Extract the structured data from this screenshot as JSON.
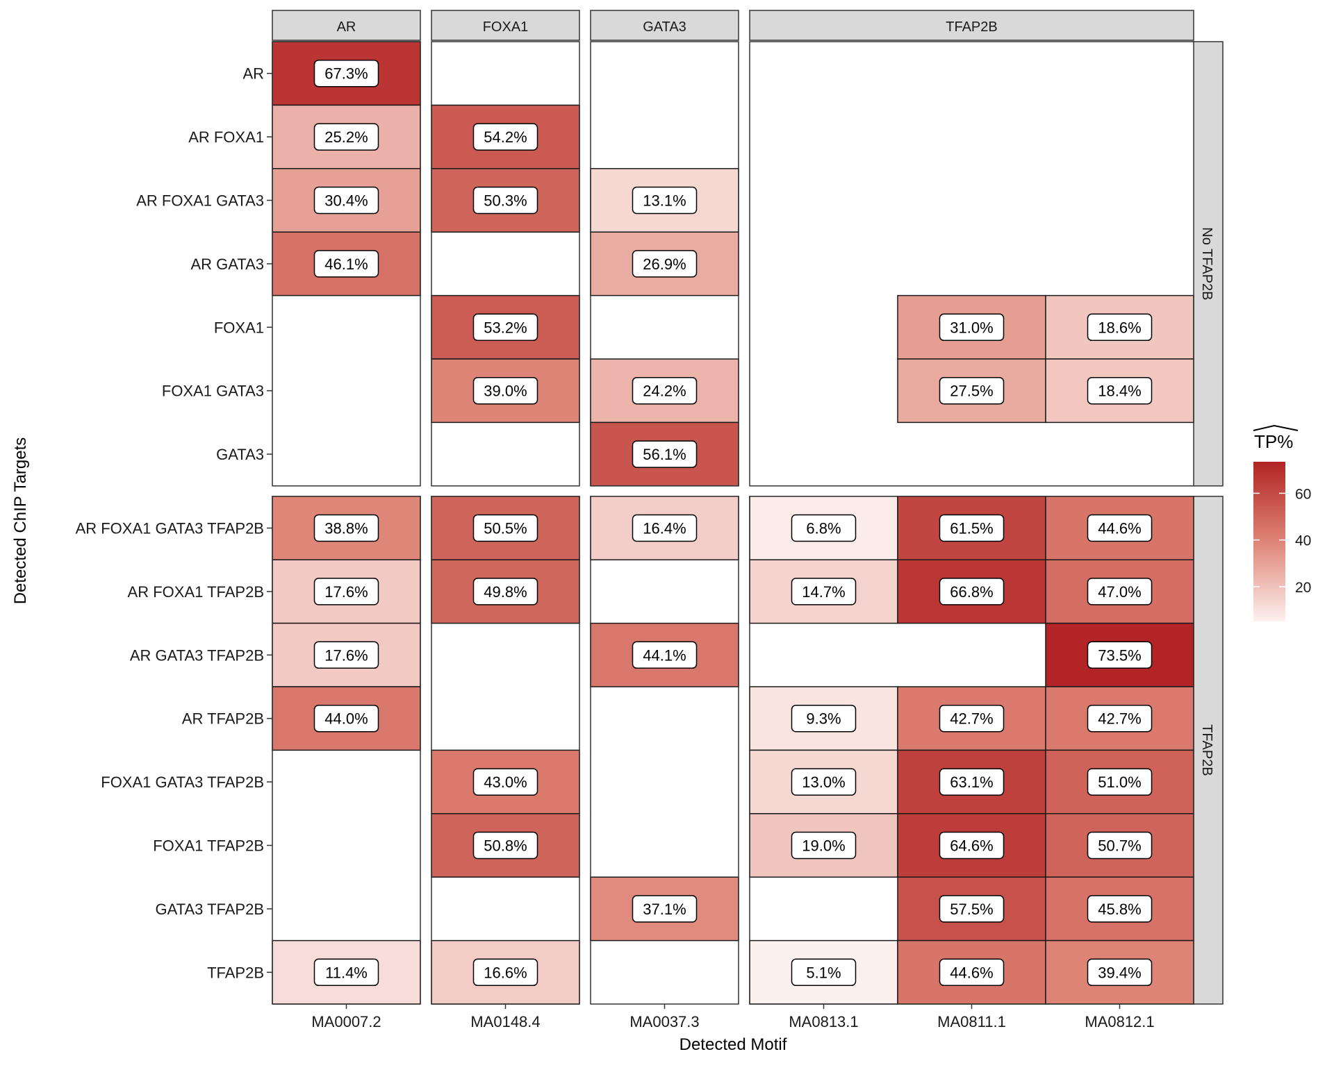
{
  "chart_data": {
    "type": "heatmap",
    "xlabel": "Detected Motif",
    "ylabel": "Detected ChIP Targets",
    "legend": {
      "title": "TP%",
      "title_hat": true,
      "ticks": [
        20,
        40,
        60
      ],
      "range": [
        5.1,
        73.5
      ],
      "low_color": "#fdf1ef",
      "high_color": "#b22425",
      "placement": "right"
    },
    "col_facets": [
      {
        "label": "AR",
        "columns": [
          "MA0007.2"
        ]
      },
      {
        "label": "FOXA1",
        "columns": [
          "MA0148.4"
        ]
      },
      {
        "label": "GATA3",
        "columns": [
          "MA0037.3"
        ]
      },
      {
        "label": "TFAP2B",
        "columns": [
          "MA0813.1",
          "MA0811.1",
          "MA0812.1"
        ]
      }
    ],
    "row_facets": [
      {
        "label": "No TFAP2B",
        "rows": [
          {
            "target": "AR",
            "values": [
              67.3,
              null,
              null,
              null,
              null,
              null
            ]
          },
          {
            "target": "AR FOXA1",
            "values": [
              25.2,
              54.2,
              null,
              null,
              null,
              null
            ]
          },
          {
            "target": "AR FOXA1 GATA3",
            "values": [
              30.4,
              50.3,
              13.1,
              null,
              null,
              null
            ]
          },
          {
            "target": "AR GATA3",
            "values": [
              46.1,
              null,
              26.9,
              null,
              null,
              null
            ]
          },
          {
            "target": "FOXA1",
            "values": [
              null,
              53.2,
              null,
              null,
              31.0,
              18.6
            ]
          },
          {
            "target": "FOXA1 GATA3",
            "values": [
              null,
              39.0,
              24.2,
              null,
              27.5,
              18.4
            ]
          },
          {
            "target": "GATA3",
            "values": [
              null,
              null,
              56.1,
              null,
              null,
              null
            ]
          }
        ]
      },
      {
        "label": "TFAP2B",
        "rows": [
          {
            "target": "AR FOXA1 GATA3 TFAP2B",
            "values": [
              38.8,
              50.5,
              16.4,
              6.8,
              61.5,
              44.6
            ]
          },
          {
            "target": "AR FOXA1 TFAP2B",
            "values": [
              17.6,
              49.8,
              null,
              14.7,
              66.8,
              47.0
            ]
          },
          {
            "target": "AR GATA3 TFAP2B",
            "values": [
              17.6,
              null,
              44.1,
              null,
              null,
              73.5
            ]
          },
          {
            "target": "AR TFAP2B",
            "values": [
              44.0,
              null,
              null,
              9.3,
              42.7,
              42.7
            ]
          },
          {
            "target": "FOXA1 GATA3 TFAP2B",
            "values": [
              null,
              43.0,
              null,
              13.0,
              63.1,
              51.0
            ]
          },
          {
            "target": "FOXA1 TFAP2B",
            "values": [
              null,
              50.8,
              null,
              19.0,
              64.6,
              50.7
            ]
          },
          {
            "target": "GATA3 TFAP2B",
            "values": [
              null,
              null,
              37.1,
              null,
              57.5,
              45.8
            ]
          },
          {
            "target": "TFAP2B",
            "values": [
              11.4,
              16.6,
              null,
              5.1,
              44.6,
              39.4
            ]
          }
        ]
      }
    ]
  }
}
